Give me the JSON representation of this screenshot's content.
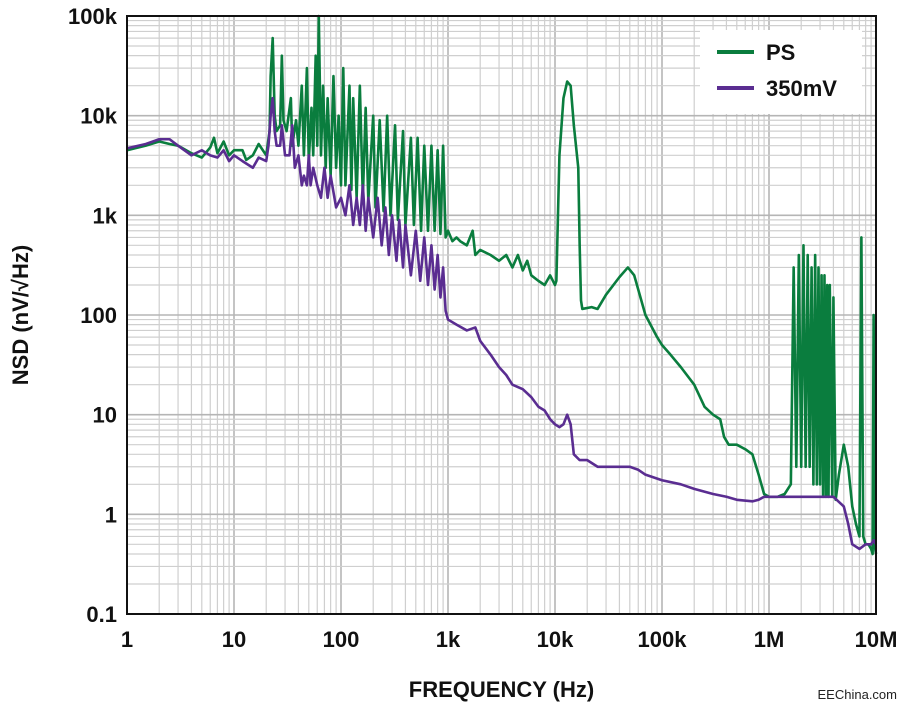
{
  "watermark": "EEChina.com",
  "chart_data": {
    "type": "line",
    "title": "",
    "xlabel": "FREQUENCY (Hz)",
    "ylabel": "NSD (nV/√Hz)",
    "x_scale": "log",
    "y_scale": "log",
    "xlim": [
      1,
      10000000
    ],
    "ylim": [
      0.1,
      100000
    ],
    "x_ticks": [
      {
        "value": 1,
        "label": "1"
      },
      {
        "value": 10,
        "label": "10"
      },
      {
        "value": 100,
        "label": "100"
      },
      {
        "value": 1000,
        "label": "1k"
      },
      {
        "value": 10000,
        "label": "10k"
      },
      {
        "value": 100000,
        "label": "100k"
      },
      {
        "value": 1000000,
        "label": "1M"
      },
      {
        "value": 10000000,
        "label": "10M"
      }
    ],
    "y_ticks": [
      {
        "value": 0.1,
        "label": "0.1"
      },
      {
        "value": 1,
        "label": "1"
      },
      {
        "value": 10,
        "label": "10"
      },
      {
        "value": 100,
        "label": "100"
      },
      {
        "value": 1000,
        "label": "1k"
      },
      {
        "value": 10000,
        "label": "10k"
      },
      {
        "value": 100000,
        "label": "100k"
      }
    ],
    "grid": true,
    "legend": {
      "placement": "top-right"
    },
    "series": [
      {
        "name": "PS",
        "color": "#0a7d3e",
        "points": [
          [
            1,
            4500
          ],
          [
            1.5,
            5000
          ],
          [
            2,
            5500
          ],
          [
            2.5,
            5200
          ],
          [
            3,
            5000
          ],
          [
            4,
            4200
          ],
          [
            5,
            3800
          ],
          [
            6,
            4800
          ],
          [
            6.5,
            6000
          ],
          [
            7,
            4200
          ],
          [
            8,
            5500
          ],
          [
            9,
            4000
          ],
          [
            10,
            4500
          ],
          [
            12,
            4500
          ],
          [
            13,
            3600
          ],
          [
            15,
            4000
          ],
          [
            17,
            5200
          ],
          [
            20,
            4000
          ],
          [
            21.5,
            7000
          ],
          [
            22,
            25000
          ],
          [
            23,
            60000
          ],
          [
            24,
            10000
          ],
          [
            25,
            7000
          ],
          [
            27,
            8000
          ],
          [
            28,
            40000
          ],
          [
            29,
            9000
          ],
          [
            31,
            7000
          ],
          [
            34,
            15000
          ],
          [
            35,
            5000
          ],
          [
            38,
            9000
          ],
          [
            40,
            5000
          ],
          [
            43,
            20000
          ],
          [
            45,
            4000
          ],
          [
            48,
            30000
          ],
          [
            50,
            3500
          ],
          [
            53,
            12000
          ],
          [
            55,
            4000
          ],
          [
            58,
            40000
          ],
          [
            60,
            5000
          ],
          [
            62,
            100000
          ],
          [
            65,
            4000
          ],
          [
            68,
            20000
          ],
          [
            72,
            3000
          ],
          [
            75,
            15000
          ],
          [
            80,
            2500
          ],
          [
            85,
            25000
          ],
          [
            90,
            3000
          ],
          [
            95,
            10000
          ],
          [
            100,
            2000
          ],
          [
            105,
            30000
          ],
          [
            110,
            2000
          ],
          [
            120,
            20000
          ],
          [
            125,
            1800
          ],
          [
            130,
            15000
          ],
          [
            140,
            1500
          ],
          [
            150,
            20000
          ],
          [
            160,
            1500
          ],
          [
            170,
            12000
          ],
          [
            180,
            1400
          ],
          [
            200,
            10000
          ],
          [
            210,
            1200
          ],
          [
            230,
            9000
          ],
          [
            250,
            1100
          ],
          [
            270,
            10000
          ],
          [
            290,
            1000
          ],
          [
            320,
            8000
          ],
          [
            340,
            900
          ],
          [
            380,
            7000
          ],
          [
            400,
            800
          ],
          [
            450,
            6000
          ],
          [
            480,
            800
          ],
          [
            520,
            6000
          ],
          [
            560,
            700
          ],
          [
            600,
            5000
          ],
          [
            650,
            700
          ],
          [
            700,
            5000
          ],
          [
            750,
            700
          ],
          [
            800,
            4500
          ],
          [
            850,
            650
          ],
          [
            900,
            5000
          ],
          [
            950,
            600
          ],
          [
            1000,
            700
          ],
          [
            1100,
            550
          ],
          [
            1200,
            600
          ],
          [
            1300,
            550
          ],
          [
            1500,
            500
          ],
          [
            1700,
            700
          ],
          [
            1800,
            400
          ],
          [
            2000,
            450
          ],
          [
            2500,
            400
          ],
          [
            3000,
            350
          ],
          [
            3500,
            400
          ],
          [
            4000,
            300
          ],
          [
            4500,
            400
          ],
          [
            5000,
            280
          ],
          [
            5500,
            350
          ],
          [
            6000,
            250
          ],
          [
            7000,
            220
          ],
          [
            8000,
            200
          ],
          [
            9000,
            250
          ],
          [
            10000,
            200
          ],
          [
            10300,
            220
          ],
          [
            11000,
            4000
          ],
          [
            12000,
            15000
          ],
          [
            13000,
            22000
          ],
          [
            14000,
            20000
          ],
          [
            15000,
            8000
          ],
          [
            16500,
            3000
          ],
          [
            17000,
            500
          ],
          [
            17500,
            140
          ],
          [
            18000,
            115
          ],
          [
            22000,
            120
          ],
          [
            25000,
            115
          ],
          [
            30000,
            160
          ],
          [
            40000,
            240
          ],
          [
            48000,
            300
          ],
          [
            55000,
            250
          ],
          [
            70000,
            100
          ],
          [
            90000,
            60
          ],
          [
            100000,
            50
          ],
          [
            120000,
            40
          ],
          [
            150000,
            30
          ],
          [
            200000,
            20
          ],
          [
            250000,
            12
          ],
          [
            300000,
            10
          ],
          [
            350000,
            9
          ],
          [
            380000,
            6
          ],
          [
            420000,
            5
          ],
          [
            500000,
            5
          ],
          [
            600000,
            4.5
          ],
          [
            700000,
            4
          ],
          [
            800000,
            2.5
          ],
          [
            900000,
            1.6
          ],
          [
            1000000,
            1.5
          ],
          [
            1200000,
            1.5
          ],
          [
            1400000,
            1.6
          ],
          [
            1600000,
            2
          ],
          [
            1700000,
            300
          ],
          [
            1800000,
            3
          ],
          [
            1900000,
            400
          ],
          [
            2000000,
            3
          ],
          [
            2100000,
            500
          ],
          [
            2200000,
            3
          ],
          [
            2300000,
            400
          ],
          [
            2400000,
            3
          ],
          [
            2500000,
            300
          ],
          [
            2600000,
            2
          ],
          [
            2700000,
            400
          ],
          [
            2800000,
            2
          ],
          [
            2900000,
            300
          ],
          [
            3000000,
            2
          ],
          [
            3100000,
            250
          ],
          [
            3200000,
            1.5
          ],
          [
            3300000,
            250
          ],
          [
            3400000,
            1.5
          ],
          [
            3500000,
            200
          ],
          [
            3600000,
            1.5
          ],
          [
            3700000,
            200
          ],
          [
            3900000,
            1.5
          ],
          [
            4000000,
            150
          ],
          [
            4200000,
            1.4
          ],
          [
            4500000,
            2.5
          ],
          [
            5000000,
            5
          ],
          [
            5500000,
            3
          ],
          [
            6000000,
            1.2
          ],
          [
            6500000,
            0.8
          ],
          [
            7000000,
            0.6
          ],
          [
            7300000,
            600
          ],
          [
            7600000,
            0.6
          ],
          [
            8000000,
            0.5
          ],
          [
            8500000,
            0.5
          ],
          [
            9000000,
            0.45
          ],
          [
            9300000,
            0.4
          ],
          [
            9500000,
            100
          ],
          [
            9700000,
            0.5
          ],
          [
            10000000,
            0.4
          ]
        ]
      },
      {
        "name": "350mV",
        "color": "#5a2d91",
        "points": [
          [
            1,
            4700
          ],
          [
            1.5,
            5200
          ],
          [
            2,
            5800
          ],
          [
            2.5,
            5800
          ],
          [
            3,
            5000
          ],
          [
            4,
            4000
          ],
          [
            5,
            4500
          ],
          [
            6,
            4000
          ],
          [
            7,
            3800
          ],
          [
            8,
            4500
          ],
          [
            9,
            3500
          ],
          [
            10,
            4000
          ],
          [
            12,
            3500
          ],
          [
            15,
            3000
          ],
          [
            17,
            3800
          ],
          [
            20,
            3500
          ],
          [
            21,
            5000
          ],
          [
            22,
            10000
          ],
          [
            23,
            15000
          ],
          [
            24,
            7000
          ],
          [
            25,
            5000
          ],
          [
            27,
            5000
          ],
          [
            28,
            8000
          ],
          [
            30,
            4000
          ],
          [
            33,
            4000
          ],
          [
            35,
            8000
          ],
          [
            37,
            3000
          ],
          [
            40,
            4000
          ],
          [
            43,
            2000
          ],
          [
            45,
            2500
          ],
          [
            48,
            2000
          ],
          [
            50,
            4000
          ],
          [
            52,
            2000
          ],
          [
            55,
            3000
          ],
          [
            60,
            2000
          ],
          [
            65,
            1500
          ],
          [
            70,
            3000
          ],
          [
            75,
            1500
          ],
          [
            80,
            2500
          ],
          [
            90,
            1200
          ],
          [
            100,
            1500
          ],
          [
            110,
            1000
          ],
          [
            120,
            2000
          ],
          [
            130,
            800
          ],
          [
            140,
            1500
          ],
          [
            150,
            800
          ],
          [
            160,
            2000
          ],
          [
            170,
            700
          ],
          [
            180,
            1500
          ],
          [
            200,
            600
          ],
          [
            220,
            1500
          ],
          [
            240,
            500
          ],
          [
            260,
            1200
          ],
          [
            280,
            400
          ],
          [
            300,
            1000
          ],
          [
            330,
            350
          ],
          [
            350,
            900
          ],
          [
            380,
            300
          ],
          [
            400,
            800
          ],
          [
            450,
            250
          ],
          [
            500,
            700
          ],
          [
            550,
            220
          ],
          [
            600,
            600
          ],
          [
            650,
            200
          ],
          [
            700,
            500
          ],
          [
            750,
            180
          ],
          [
            800,
            400
          ],
          [
            850,
            150
          ],
          [
            900,
            300
          ],
          [
            950,
            110
          ],
          [
            1000,
            90
          ],
          [
            1200,
            80
          ],
          [
            1500,
            70
          ],
          [
            1800,
            75
          ],
          [
            2000,
            55
          ],
          [
            2500,
            40
          ],
          [
            3000,
            30
          ],
          [
            3500,
            25
          ],
          [
            4000,
            20
          ],
          [
            5000,
            18
          ],
          [
            6000,
            15
          ],
          [
            7000,
            12
          ],
          [
            8000,
            11
          ],
          [
            9000,
            9
          ],
          [
            10000,
            8
          ],
          [
            11000,
            7.5
          ],
          [
            12000,
            8
          ],
          [
            13000,
            10
          ],
          [
            14000,
            8
          ],
          [
            15000,
            4
          ],
          [
            17000,
            3.5
          ],
          [
            20000,
            3.5
          ],
          [
            25000,
            3
          ],
          [
            30000,
            3
          ],
          [
            40000,
            3
          ],
          [
            50000,
            3
          ],
          [
            60000,
            2.8
          ],
          [
            70000,
            2.5
          ],
          [
            100000,
            2.2
          ],
          [
            150000,
            2
          ],
          [
            200000,
            1.8
          ],
          [
            300000,
            1.6
          ],
          [
            400000,
            1.5
          ],
          [
            500000,
            1.4
          ],
          [
            700000,
            1.35
          ],
          [
            800000,
            1.4
          ],
          [
            900000,
            1.5
          ],
          [
            1000000,
            1.5
          ],
          [
            1500000,
            1.5
          ],
          [
            2000000,
            1.5
          ],
          [
            3000000,
            1.5
          ],
          [
            4000000,
            1.5
          ],
          [
            5000000,
            1.2
          ],
          [
            5500000,
            0.8
          ],
          [
            6000000,
            0.5
          ],
          [
            7000000,
            0.45
          ],
          [
            8000000,
            0.5
          ],
          [
            9000000,
            0.5
          ],
          [
            9500000,
            0.55
          ],
          [
            10000000,
            0.5
          ]
        ]
      }
    ]
  }
}
